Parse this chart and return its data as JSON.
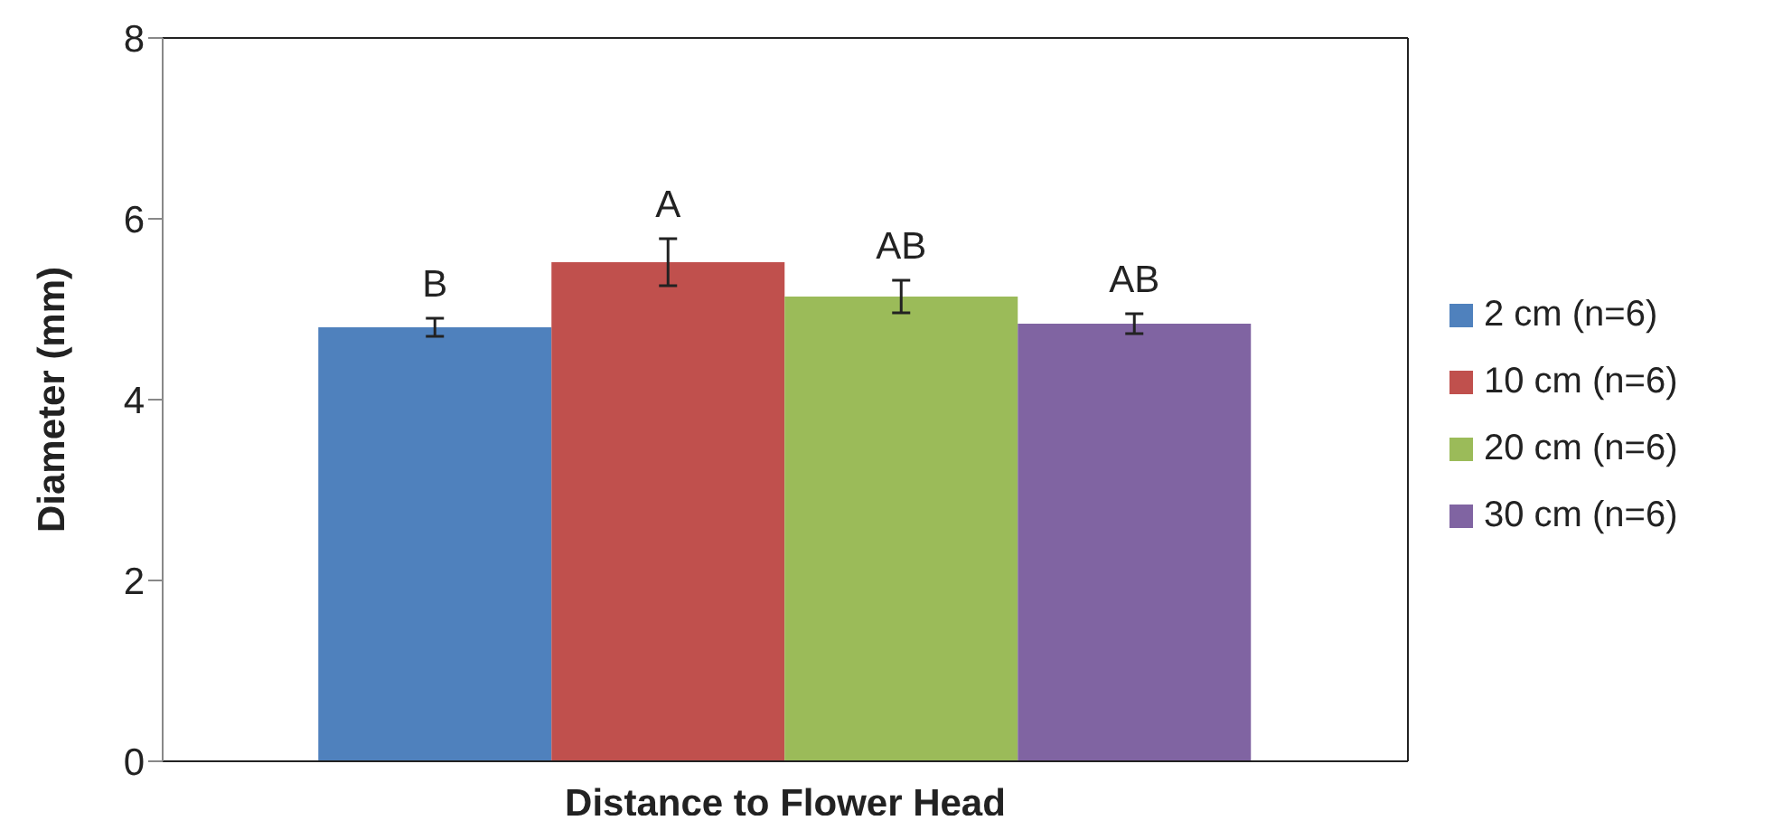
{
  "chart_data": {
    "type": "bar",
    "xlabel": "Distance to Flower Head",
    "ylabel": "Diameter (mm)",
    "categories": [
      null
    ],
    "series": [
      {
        "name": "2 cm (n=6)",
        "color": "#4f81bd",
        "values": [
          4.8
        ],
        "errors": [
          0.1
        ],
        "value_labels": [
          "B"
        ]
      },
      {
        "name": "10 cm (n=6)",
        "color": "#c0504d",
        "values": [
          5.52
        ],
        "errors": [
          0.26
        ],
        "value_labels": [
          "A"
        ]
      },
      {
        "name": "20 cm (n=6)",
        "color": "#9bbb59",
        "values": [
          5.14
        ],
        "errors": [
          0.18
        ],
        "value_labels": [
          "AB"
        ]
      },
      {
        "name": "30 cm (n=6)",
        "color": "#8064a2",
        "values": [
          4.84
        ],
        "errors": [
          0.11
        ],
        "value_labels": [
          "AB"
        ]
      }
    ],
    "ylim": [
      0,
      8
    ],
    "yticks": [
      0,
      2,
      4,
      6,
      8
    ],
    "grid": false,
    "legend": "right",
    "tick_labels": "y"
  }
}
